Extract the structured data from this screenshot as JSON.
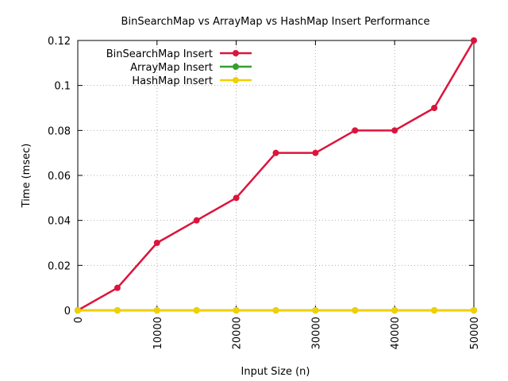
{
  "chart_data": {
    "type": "line",
    "title": "BinSearchMap vs ArrayMap vs HashMap Insert Performance",
    "xlabel": "Input Size (n)",
    "ylabel": "Time (msec)",
    "xlim": [
      0,
      50000
    ],
    "ylim": [
      0,
      0.12
    ],
    "xticks": [
      "0",
      "10000",
      "20000",
      "30000",
      "40000",
      "50000"
    ],
    "yticks": [
      "0",
      "0.02",
      "0.04",
      "0.06",
      "0.08",
      "0.1",
      "0.12"
    ],
    "grid": true,
    "legend_position": "top-left",
    "x": [
      0,
      5000,
      10000,
      15000,
      20000,
      25000,
      30000,
      35000,
      40000,
      45000,
      50000
    ],
    "series": [
      {
        "name": "BinSearchMap Insert",
        "color": "#dc143c",
        "values": [
          0,
          0.01,
          0.03,
          0.04,
          0.05,
          0.07,
          0.07,
          0.08,
          0.08,
          0.09,
          0.12
        ]
      },
      {
        "name": "ArrayMap Insert",
        "color": "#33a02c",
        "values": [
          0,
          0,
          0,
          0,
          0,
          0,
          0,
          0,
          0,
          0,
          0
        ]
      },
      {
        "name": "HashMap Insert",
        "color": "#f0d000",
        "values": [
          0,
          0,
          0,
          0,
          0,
          0,
          0,
          0,
          0,
          0,
          0
        ]
      }
    ]
  }
}
